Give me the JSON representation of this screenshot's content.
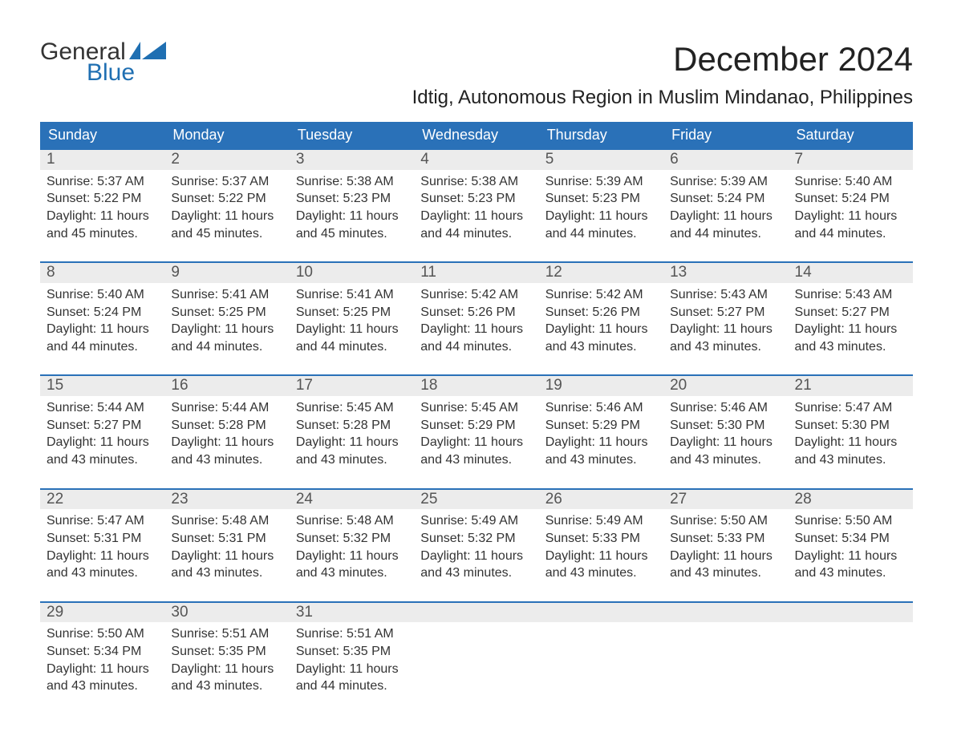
{
  "logo": {
    "text_top": "General",
    "text_bottom": "Blue",
    "flag_color": "#1f6fb2"
  },
  "title": "December 2024",
  "location": "Idtig, Autonomous Region in Muslim Mindanao, Philippines",
  "colors": {
    "header_bg": "#2a71b8",
    "header_text": "#ffffff",
    "week_border": "#2a71b8",
    "daynum_bg": "#ececec",
    "daynum_text": "#555555",
    "body_text": "#333333",
    "page_bg": "#ffffff",
    "logo_blue": "#1f6fb2"
  },
  "weekdays": [
    "Sunday",
    "Monday",
    "Tuesday",
    "Wednesday",
    "Thursday",
    "Friday",
    "Saturday"
  ],
  "weeks": [
    [
      {
        "n": "1",
        "sunrise": "Sunrise: 5:37 AM",
        "sunset": "Sunset: 5:22 PM",
        "daylight": "Daylight: 11 hours and 45 minutes."
      },
      {
        "n": "2",
        "sunrise": "Sunrise: 5:37 AM",
        "sunset": "Sunset: 5:22 PM",
        "daylight": "Daylight: 11 hours and 45 minutes."
      },
      {
        "n": "3",
        "sunrise": "Sunrise: 5:38 AM",
        "sunset": "Sunset: 5:23 PM",
        "daylight": "Daylight: 11 hours and 45 minutes."
      },
      {
        "n": "4",
        "sunrise": "Sunrise: 5:38 AM",
        "sunset": "Sunset: 5:23 PM",
        "daylight": "Daylight: 11 hours and 44 minutes."
      },
      {
        "n": "5",
        "sunrise": "Sunrise: 5:39 AM",
        "sunset": "Sunset: 5:23 PM",
        "daylight": "Daylight: 11 hours and 44 minutes."
      },
      {
        "n": "6",
        "sunrise": "Sunrise: 5:39 AM",
        "sunset": "Sunset: 5:24 PM",
        "daylight": "Daylight: 11 hours and 44 minutes."
      },
      {
        "n": "7",
        "sunrise": "Sunrise: 5:40 AM",
        "sunset": "Sunset: 5:24 PM",
        "daylight": "Daylight: 11 hours and 44 minutes."
      }
    ],
    [
      {
        "n": "8",
        "sunrise": "Sunrise: 5:40 AM",
        "sunset": "Sunset: 5:24 PM",
        "daylight": "Daylight: 11 hours and 44 minutes."
      },
      {
        "n": "9",
        "sunrise": "Sunrise: 5:41 AM",
        "sunset": "Sunset: 5:25 PM",
        "daylight": "Daylight: 11 hours and 44 minutes."
      },
      {
        "n": "10",
        "sunrise": "Sunrise: 5:41 AM",
        "sunset": "Sunset: 5:25 PM",
        "daylight": "Daylight: 11 hours and 44 minutes."
      },
      {
        "n": "11",
        "sunrise": "Sunrise: 5:42 AM",
        "sunset": "Sunset: 5:26 PM",
        "daylight": "Daylight: 11 hours and 44 minutes."
      },
      {
        "n": "12",
        "sunrise": "Sunrise: 5:42 AM",
        "sunset": "Sunset: 5:26 PM",
        "daylight": "Daylight: 11 hours and 43 minutes."
      },
      {
        "n": "13",
        "sunrise": "Sunrise: 5:43 AM",
        "sunset": "Sunset: 5:27 PM",
        "daylight": "Daylight: 11 hours and 43 minutes."
      },
      {
        "n": "14",
        "sunrise": "Sunrise: 5:43 AM",
        "sunset": "Sunset: 5:27 PM",
        "daylight": "Daylight: 11 hours and 43 minutes."
      }
    ],
    [
      {
        "n": "15",
        "sunrise": "Sunrise: 5:44 AM",
        "sunset": "Sunset: 5:27 PM",
        "daylight": "Daylight: 11 hours and 43 minutes."
      },
      {
        "n": "16",
        "sunrise": "Sunrise: 5:44 AM",
        "sunset": "Sunset: 5:28 PM",
        "daylight": "Daylight: 11 hours and 43 minutes."
      },
      {
        "n": "17",
        "sunrise": "Sunrise: 5:45 AM",
        "sunset": "Sunset: 5:28 PM",
        "daylight": "Daylight: 11 hours and 43 minutes."
      },
      {
        "n": "18",
        "sunrise": "Sunrise: 5:45 AM",
        "sunset": "Sunset: 5:29 PM",
        "daylight": "Daylight: 11 hours and 43 minutes."
      },
      {
        "n": "19",
        "sunrise": "Sunrise: 5:46 AM",
        "sunset": "Sunset: 5:29 PM",
        "daylight": "Daylight: 11 hours and 43 minutes."
      },
      {
        "n": "20",
        "sunrise": "Sunrise: 5:46 AM",
        "sunset": "Sunset: 5:30 PM",
        "daylight": "Daylight: 11 hours and 43 minutes."
      },
      {
        "n": "21",
        "sunrise": "Sunrise: 5:47 AM",
        "sunset": "Sunset: 5:30 PM",
        "daylight": "Daylight: 11 hours and 43 minutes."
      }
    ],
    [
      {
        "n": "22",
        "sunrise": "Sunrise: 5:47 AM",
        "sunset": "Sunset: 5:31 PM",
        "daylight": "Daylight: 11 hours and 43 minutes."
      },
      {
        "n": "23",
        "sunrise": "Sunrise: 5:48 AM",
        "sunset": "Sunset: 5:31 PM",
        "daylight": "Daylight: 11 hours and 43 minutes."
      },
      {
        "n": "24",
        "sunrise": "Sunrise: 5:48 AM",
        "sunset": "Sunset: 5:32 PM",
        "daylight": "Daylight: 11 hours and 43 minutes."
      },
      {
        "n": "25",
        "sunrise": "Sunrise: 5:49 AM",
        "sunset": "Sunset: 5:32 PM",
        "daylight": "Daylight: 11 hours and 43 minutes."
      },
      {
        "n": "26",
        "sunrise": "Sunrise: 5:49 AM",
        "sunset": "Sunset: 5:33 PM",
        "daylight": "Daylight: 11 hours and 43 minutes."
      },
      {
        "n": "27",
        "sunrise": "Sunrise: 5:50 AM",
        "sunset": "Sunset: 5:33 PM",
        "daylight": "Daylight: 11 hours and 43 minutes."
      },
      {
        "n": "28",
        "sunrise": "Sunrise: 5:50 AM",
        "sunset": "Sunset: 5:34 PM",
        "daylight": "Daylight: 11 hours and 43 minutes."
      }
    ],
    [
      {
        "n": "29",
        "sunrise": "Sunrise: 5:50 AM",
        "sunset": "Sunset: 5:34 PM",
        "daylight": "Daylight: 11 hours and 43 minutes."
      },
      {
        "n": "30",
        "sunrise": "Sunrise: 5:51 AM",
        "sunset": "Sunset: 5:35 PM",
        "daylight": "Daylight: 11 hours and 43 minutes."
      },
      {
        "n": "31",
        "sunrise": "Sunrise: 5:51 AM",
        "sunset": "Sunset: 5:35 PM",
        "daylight": "Daylight: 11 hours and 44 minutes."
      },
      null,
      null,
      null,
      null
    ]
  ]
}
